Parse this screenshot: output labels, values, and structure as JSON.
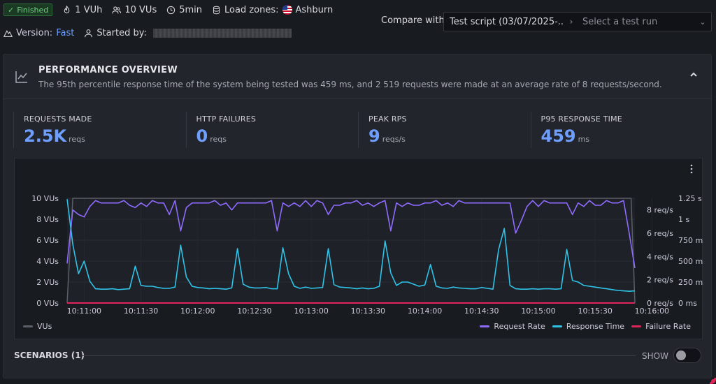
{
  "header": {
    "status": "Finished",
    "vuh": "1 VUh",
    "vus": "10 VUs",
    "duration": "5min",
    "load_zones_label": "Load zones:",
    "load_zone": "Ashburn",
    "version_label": "Version:",
    "version_value": "Fast",
    "started_by_label": "Started by:"
  },
  "compare": {
    "label": "Compare with",
    "script": "Test script (03/07/2025-...",
    "select_placeholder": "Select a test run"
  },
  "overview": {
    "title": "PERFORMANCE OVERVIEW",
    "description": "The 95th percentile response time of the system being tested was 459 ms, and 2 519 requests were made at an average rate of 8 requests/second."
  },
  "stats": [
    {
      "label": "REQUESTS MADE",
      "value": "2.5K",
      "unit": "reqs"
    },
    {
      "label": "HTTP FAILURES",
      "value": "0",
      "unit": "reqs"
    },
    {
      "label": "PEAK RPS",
      "value": "9",
      "unit": "reqs/s"
    },
    {
      "label": "P95 RESPONSE TIME",
      "value": "459",
      "unit": "ms"
    }
  ],
  "chart_data": {
    "type": "line",
    "x_ticks": [
      "10:11:00",
      "10:11:30",
      "10:12:00",
      "10:12:30",
      "10:13:00",
      "10:13:30",
      "10:14:00",
      "10:14:30",
      "10:15:00",
      "10:15:30",
      "10:16:00"
    ],
    "y_left_ticks": [
      "0 VUs",
      "2 VUs",
      "4 VUs",
      "6 VUs",
      "8 VUs",
      "10 VUs"
    ],
    "y_right1_ticks": [
      "0 req/s",
      "2 req/s",
      "4 req/s",
      "6 req/s",
      "8 req/s"
    ],
    "y_right2_ticks": [
      "0 ms",
      "250 ms",
      "500 ms",
      "750 ms",
      "1 s",
      "1.25 s"
    ],
    "y_left_range": [
      0,
      10
    ],
    "y_right1_range": [
      0,
      9
    ],
    "y_right2_range": [
      0,
      1250
    ],
    "x_range_sec": [
      0,
      300
    ],
    "series": [
      {
        "name": "VUs",
        "color": "#5b5e66",
        "axis": "left",
        "x": [
          0,
          3,
          298,
          300
        ],
        "values": [
          0,
          10,
          10,
          0
        ]
      },
      {
        "name": "Request Rate",
        "color": "#8f6bff",
        "axis": "right1",
        "x": [
          0,
          3,
          6,
          9,
          12,
          15,
          18,
          21,
          24,
          27,
          30,
          33,
          36,
          39,
          42,
          45,
          48,
          51,
          54,
          57,
          60,
          63,
          66,
          69,
          72,
          75,
          78,
          81,
          84,
          87,
          90,
          93,
          96,
          99,
          102,
          105,
          108,
          111,
          114,
          117,
          120,
          123,
          126,
          129,
          132,
          135,
          138,
          141,
          144,
          147,
          150,
          153,
          156,
          159,
          162,
          165,
          168,
          171,
          174,
          177,
          180,
          183,
          186,
          189,
          192,
          195,
          198,
          201,
          204,
          207,
          210,
          213,
          216,
          219,
          222,
          225,
          228,
          231,
          234,
          237,
          240,
          243,
          246,
          249,
          252,
          255,
          258,
          261,
          264,
          267,
          270,
          273,
          276,
          279,
          282,
          285,
          288,
          291,
          294,
          297,
          300
        ],
        "values": [
          3.4,
          8.0,
          7.6,
          7.4,
          8.3,
          8.8,
          8.6,
          8.6,
          8.6,
          8.6,
          8.8,
          8.4,
          8.2,
          8.6,
          8.3,
          8.8,
          8.6,
          8.6,
          7.6,
          8.8,
          6.2,
          8.2,
          8.6,
          8.6,
          8.6,
          8.6,
          8.8,
          8.4,
          8.6,
          8.0,
          8.6,
          8.6,
          8.6,
          8.6,
          8.6,
          8.6,
          8.8,
          6.2,
          8.6,
          8.3,
          8.6,
          8.3,
          8.8,
          8.3,
          8.8,
          8.6,
          7.6,
          8.4,
          8.4,
          8.6,
          8.6,
          8.8,
          8.4,
          8.6,
          8.3,
          8.6,
          8.8,
          6.2,
          8.6,
          8.3,
          8.6,
          8.4,
          8.4,
          8.6,
          8.6,
          8.8,
          8.4,
          8.6,
          8.3,
          8.8,
          8.6,
          8.6,
          8.6,
          8.6,
          8.6,
          8.6,
          8.6,
          8.6,
          8.6,
          6.0,
          7.1,
          8.3,
          8.8,
          8.3,
          8.8,
          8.6,
          8.6,
          8.6,
          8.6,
          7.6,
          8.6,
          8.3,
          8.8,
          8.4,
          8.4,
          8.8,
          8.6,
          8.6,
          8.8,
          6.0,
          3.0
        ]
      },
      {
        "name": "Response Time",
        "color": "#2fc3e8",
        "axis": "right2",
        "x": [
          0,
          3,
          6,
          9,
          12,
          15,
          18,
          21,
          24,
          27,
          30,
          33,
          36,
          39,
          42,
          45,
          48,
          51,
          54,
          57,
          60,
          63,
          66,
          69,
          72,
          75,
          78,
          81,
          84,
          87,
          90,
          93,
          96,
          99,
          102,
          105,
          108,
          111,
          114,
          117,
          120,
          123,
          126,
          129,
          132,
          135,
          138,
          141,
          144,
          147,
          150,
          153,
          156,
          159,
          162,
          165,
          168,
          171,
          174,
          177,
          180,
          183,
          186,
          189,
          192,
          195,
          198,
          201,
          204,
          207,
          210,
          213,
          216,
          219,
          222,
          225,
          228,
          231,
          234,
          237,
          240,
          243,
          246,
          249,
          252,
          255,
          258,
          261,
          264,
          267,
          270,
          273,
          276,
          279,
          282,
          285,
          288,
          291,
          294,
          297,
          300
        ],
        "values": [
          1240,
          700,
          350,
          500,
          260,
          170,
          165,
          165,
          170,
          160,
          165,
          170,
          440,
          210,
          200,
          200,
          185,
          175,
          175,
          190,
          690,
          310,
          200,
          185,
          180,
          170,
          175,
          170,
          165,
          180,
          650,
          225,
          190,
          180,
          180,
          185,
          170,
          170,
          660,
          350,
          200,
          175,
          190,
          175,
          180,
          185,
          650,
          220,
          190,
          185,
          180,
          170,
          180,
          170,
          175,
          200,
          740,
          360,
          210,
          250,
          250,
          225,
          200,
          215,
          460,
          200,
          180,
          175,
          190,
          180,
          175,
          170,
          170,
          185,
          175,
          165,
          640,
          890,
          210,
          170,
          165,
          165,
          170,
          165,
          170,
          170,
          165,
          170,
          640,
          270,
          250,
          210,
          200,
          190,
          180,
          170,
          160,
          150,
          145,
          140,
          145
        ]
      },
      {
        "name": "Failure Rate",
        "color": "#e0255b",
        "axis": "right1",
        "x": [
          0,
          300
        ],
        "values": [
          0,
          0
        ]
      }
    ]
  }
}
